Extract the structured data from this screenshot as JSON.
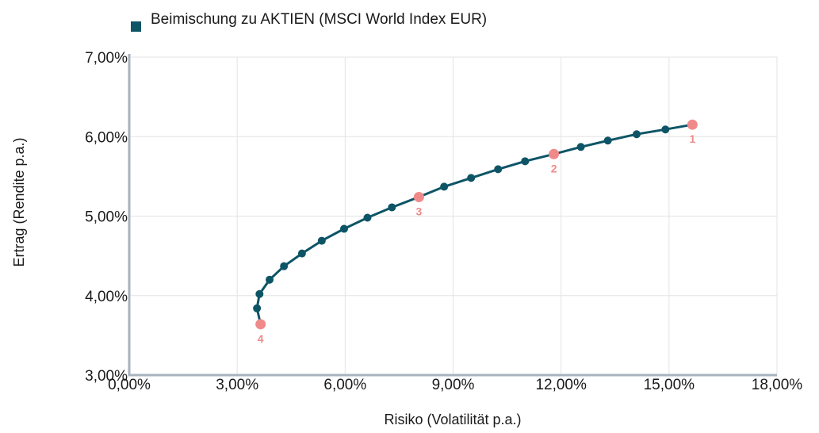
{
  "chart_data": {
    "type": "line",
    "xlabel": "Risiko (Volatilität p.a.)",
    "ylabel": "Ertrag (Rendite p.a.)",
    "xlim": [
      0,
      18
    ],
    "ylim": [
      3,
      7
    ],
    "x_ticks": [
      0,
      3,
      6,
      9,
      12,
      15,
      18
    ],
    "y_ticks": [
      3,
      4,
      5,
      6,
      7
    ],
    "x_tick_labels": [
      "0,00%",
      "3,00%",
      "6,00%",
      "9,00%",
      "12,00%",
      "15,00%",
      "18,00%"
    ],
    "y_tick_labels": [
      "3,00%",
      "4,00%",
      "5,00%",
      "6,00%",
      "7,00%"
    ],
    "grid": true,
    "legend": {
      "position": "top-left"
    },
    "series": [
      {
        "name": "Beimischung zu AKTIEN (MSCI World Index EUR)",
        "color": "#0d5566",
        "points": [
          {
            "x": 3.55,
            "y": 3.84
          },
          {
            "x": 3.62,
            "y": 4.02
          },
          {
            "x": 3.9,
            "y": 4.2
          },
          {
            "x": 4.3,
            "y": 4.37
          },
          {
            "x": 4.8,
            "y": 4.53
          },
          {
            "x": 5.35,
            "y": 4.69
          },
          {
            "x": 5.97,
            "y": 4.84
          },
          {
            "x": 6.62,
            "y": 4.98
          },
          {
            "x": 7.3,
            "y": 5.11
          },
          {
            "x": 8.75,
            "y": 5.37
          },
          {
            "x": 9.5,
            "y": 5.48
          },
          {
            "x": 10.25,
            "y": 5.59
          },
          {
            "x": 11.0,
            "y": 5.69
          },
          {
            "x": 12.55,
            "y": 5.87
          },
          {
            "x": 13.3,
            "y": 5.95
          },
          {
            "x": 14.1,
            "y": 6.03
          },
          {
            "x": 14.9,
            "y": 6.09
          }
        ]
      }
    ],
    "highlight_color": "#f08a8a",
    "highlights": [
      {
        "label": "1",
        "x": 15.65,
        "y": 6.15
      },
      {
        "label": "2",
        "x": 11.8,
        "y": 5.78
      },
      {
        "label": "3",
        "x": 8.05,
        "y": 5.24
      },
      {
        "label": "4",
        "x": 3.65,
        "y": 3.64
      }
    ]
  }
}
